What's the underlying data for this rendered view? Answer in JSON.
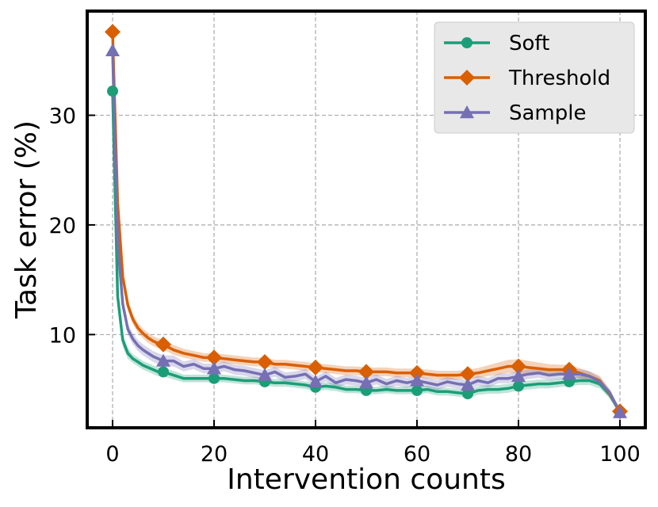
{
  "chart_data": {
    "type": "line",
    "title": "",
    "xlabel": "Intervention counts",
    "ylabel": "Task error (%)",
    "xlim": [
      -5,
      105
    ],
    "ylim": [
      1.5,
      39.5
    ],
    "xticks": [
      0,
      20,
      40,
      60,
      80,
      100
    ],
    "yticks": [
      10,
      20,
      30
    ],
    "xtick_labels": [
      "0",
      "20",
      "40",
      "60",
      "80",
      "100"
    ],
    "ytick_labels": [
      "10",
      "20",
      "30"
    ],
    "grid": true,
    "legend_position": "top-right",
    "x": [
      0,
      1,
      2,
      3,
      4,
      5,
      6,
      7,
      8,
      9,
      10,
      12,
      14,
      16,
      18,
      20,
      22,
      24,
      26,
      28,
      30,
      32,
      34,
      36,
      38,
      40,
      42,
      44,
      46,
      48,
      50,
      52,
      54,
      56,
      58,
      60,
      62,
      64,
      66,
      68,
      70,
      72,
      74,
      76,
      78,
      80,
      82,
      84,
      86,
      88,
      90,
      92,
      94,
      96,
      98,
      100
    ],
    "marker_x": [
      0,
      10,
      20,
      30,
      40,
      50,
      60,
      70,
      80,
      90,
      100
    ],
    "series": [
      {
        "name": "Soft",
        "color": "#1b9e77",
        "marker": "circle",
        "values": [
          32.2,
          13.5,
          9.5,
          8.3,
          7.8,
          7.5,
          7.2,
          7.0,
          6.8,
          6.6,
          6.6,
          6.3,
          6.0,
          6.0,
          6.0,
          6.0,
          6.0,
          5.9,
          5.8,
          5.8,
          5.7,
          5.6,
          5.6,
          5.5,
          5.4,
          5.2,
          5.3,
          5.2,
          5.0,
          5.0,
          4.9,
          4.9,
          5.0,
          4.9,
          4.9,
          4.9,
          5.0,
          4.8,
          4.8,
          4.7,
          4.6,
          4.9,
          5.0,
          5.0,
          5.1,
          5.3,
          5.4,
          5.5,
          5.5,
          5.6,
          5.7,
          5.8,
          5.8,
          5.5,
          4.5,
          2.9
        ],
        "band": [
          0.3,
          0.8,
          0.6,
          0.5,
          0.4,
          0.4,
          0.4,
          0.4,
          0.4,
          0.4,
          0.4,
          0.4,
          0.35,
          0.35,
          0.35,
          0.35,
          0.35,
          0.35,
          0.35,
          0.35,
          0.35,
          0.35,
          0.35,
          0.35,
          0.35,
          0.35,
          0.35,
          0.35,
          0.35,
          0.35,
          0.35,
          0.35,
          0.35,
          0.35,
          0.35,
          0.35,
          0.35,
          0.35,
          0.35,
          0.35,
          0.35,
          0.4,
          0.4,
          0.4,
          0.4,
          0.4,
          0.4,
          0.4,
          0.4,
          0.4,
          0.4,
          0.4,
          0.4,
          0.4,
          0.35,
          0.2
        ]
      },
      {
        "name": "Threshold",
        "color": "#d95f02",
        "marker": "diamond",
        "values": [
          37.6,
          22.0,
          15.3,
          12.7,
          11.4,
          10.6,
          10.1,
          9.7,
          9.4,
          9.2,
          9.1,
          8.6,
          8.3,
          8.1,
          7.9,
          7.9,
          7.8,
          7.7,
          7.6,
          7.5,
          7.5,
          7.3,
          7.3,
          7.2,
          7.1,
          7.0,
          6.9,
          6.8,
          6.7,
          6.7,
          6.6,
          6.6,
          6.6,
          6.5,
          6.5,
          6.5,
          6.4,
          6.3,
          6.3,
          6.3,
          6.4,
          6.5,
          6.7,
          6.9,
          7.1,
          7.1,
          7.0,
          6.9,
          6.8,
          6.8,
          6.8,
          6.5,
          6.2,
          5.8,
          4.6,
          3.0
        ],
        "band": [
          0.3,
          0.8,
          0.6,
          0.5,
          0.45,
          0.45,
          0.45,
          0.45,
          0.45,
          0.45,
          0.45,
          0.45,
          0.4,
          0.4,
          0.4,
          0.4,
          0.4,
          0.4,
          0.4,
          0.4,
          0.4,
          0.4,
          0.4,
          0.4,
          0.4,
          0.4,
          0.4,
          0.4,
          0.4,
          0.4,
          0.4,
          0.4,
          0.4,
          0.4,
          0.4,
          0.4,
          0.4,
          0.4,
          0.4,
          0.4,
          0.4,
          0.45,
          0.5,
          0.55,
          0.6,
          0.65,
          0.6,
          0.55,
          0.5,
          0.45,
          0.45,
          0.45,
          0.45,
          0.45,
          0.35,
          0.2
        ]
      },
      {
        "name": "Sample",
        "color": "#7570b3",
        "marker": "triangle",
        "values": [
          35.9,
          18.5,
          12.8,
          10.5,
          9.6,
          9.0,
          8.6,
          8.3,
          8.0,
          7.8,
          7.6,
          7.6,
          7.1,
          7.3,
          6.9,
          6.9,
          7.1,
          6.8,
          6.7,
          6.5,
          6.3,
          6.6,
          6.1,
          6.2,
          6.4,
          5.7,
          6.2,
          5.6,
          5.9,
          5.8,
          5.6,
          5.9,
          5.5,
          5.8,
          5.6,
          5.8,
          5.6,
          5.4,
          5.7,
          5.5,
          5.4,
          5.8,
          5.6,
          6.0,
          6.0,
          6.2,
          6.4,
          6.5,
          6.3,
          6.4,
          6.4,
          6.4,
          6.2,
          5.7,
          4.7,
          2.9
        ],
        "band": [
          0.3,
          0.8,
          0.6,
          0.5,
          0.5,
          0.5,
          0.5,
          0.5,
          0.5,
          0.5,
          0.5,
          0.5,
          0.45,
          0.45,
          0.45,
          0.45,
          0.45,
          0.45,
          0.45,
          0.45,
          0.45,
          0.45,
          0.45,
          0.45,
          0.45,
          0.45,
          0.45,
          0.45,
          0.45,
          0.45,
          0.45,
          0.45,
          0.45,
          0.45,
          0.45,
          0.45,
          0.45,
          0.45,
          0.45,
          0.45,
          0.45,
          0.45,
          0.45,
          0.45,
          0.45,
          0.45,
          0.45,
          0.45,
          0.45,
          0.45,
          0.45,
          0.45,
          0.45,
          0.4,
          0.35,
          0.2
        ]
      }
    ]
  }
}
